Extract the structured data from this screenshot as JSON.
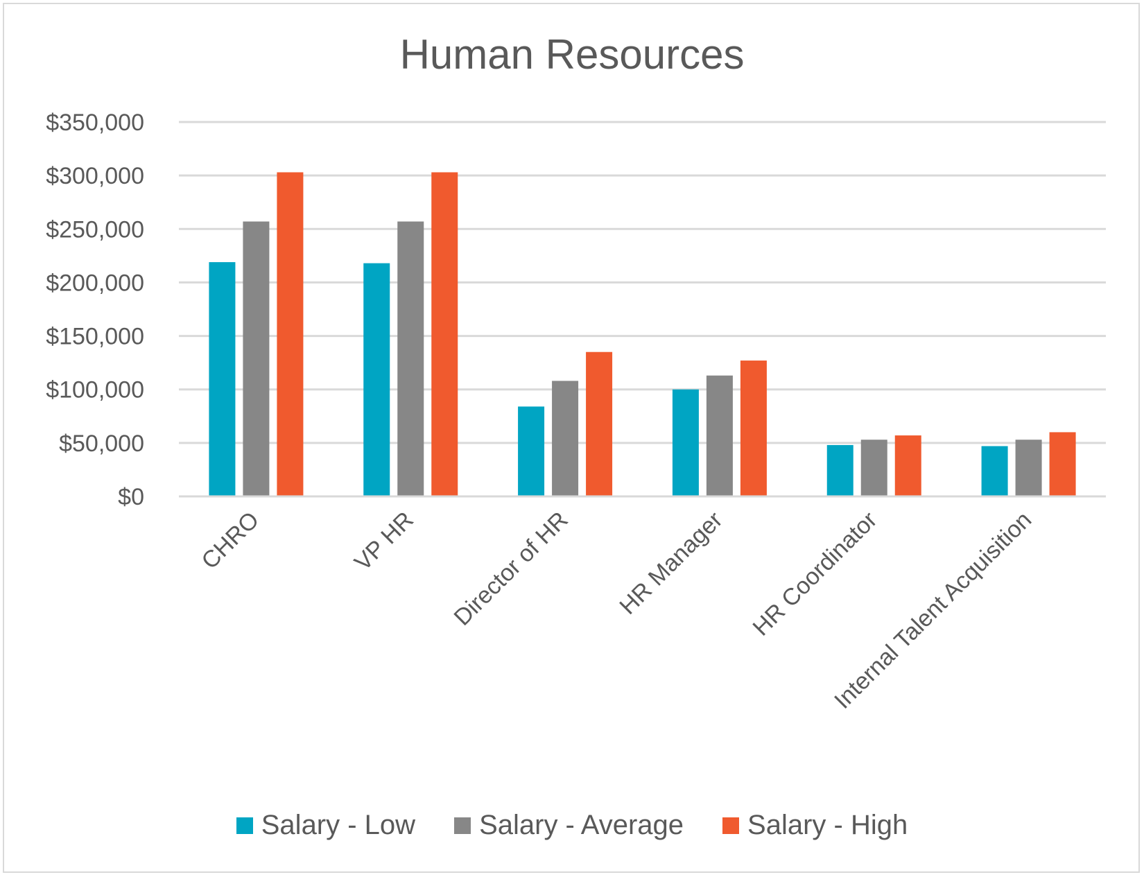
{
  "chart_data": {
    "type": "bar",
    "title": "Human Resources",
    "xlabel": "",
    "ylabel": "",
    "categories": [
      "CHRO",
      "VP HR",
      "Director of HR",
      "HR Manager",
      "HR Coordinator",
      "Internal Talent Acquisition"
    ],
    "series": [
      {
        "name": "Salary - Low",
        "color": "#00a5c3",
        "values": [
          219000,
          218000,
          84000,
          100000,
          48000,
          47000
        ]
      },
      {
        "name": "Salary - Average",
        "color": "#878787",
        "values": [
          257000,
          257000,
          108000,
          113000,
          53000,
          53000
        ]
      },
      {
        "name": "Salary - High",
        "color": "#f05a2e",
        "values": [
          303000,
          303000,
          135000,
          127000,
          57000,
          60000
        ]
      }
    ],
    "ylim": [
      0,
      350000
    ],
    "yticks": [
      0,
      50000,
      100000,
      150000,
      200000,
      250000,
      300000,
      350000
    ],
    "ytick_labels": [
      "$0",
      "$50,000",
      "$100,000",
      "$150,000",
      "$200,000",
      "$250,000",
      "$300,000",
      "$350,000"
    ],
    "grid": true,
    "legend_position": "bottom"
  }
}
